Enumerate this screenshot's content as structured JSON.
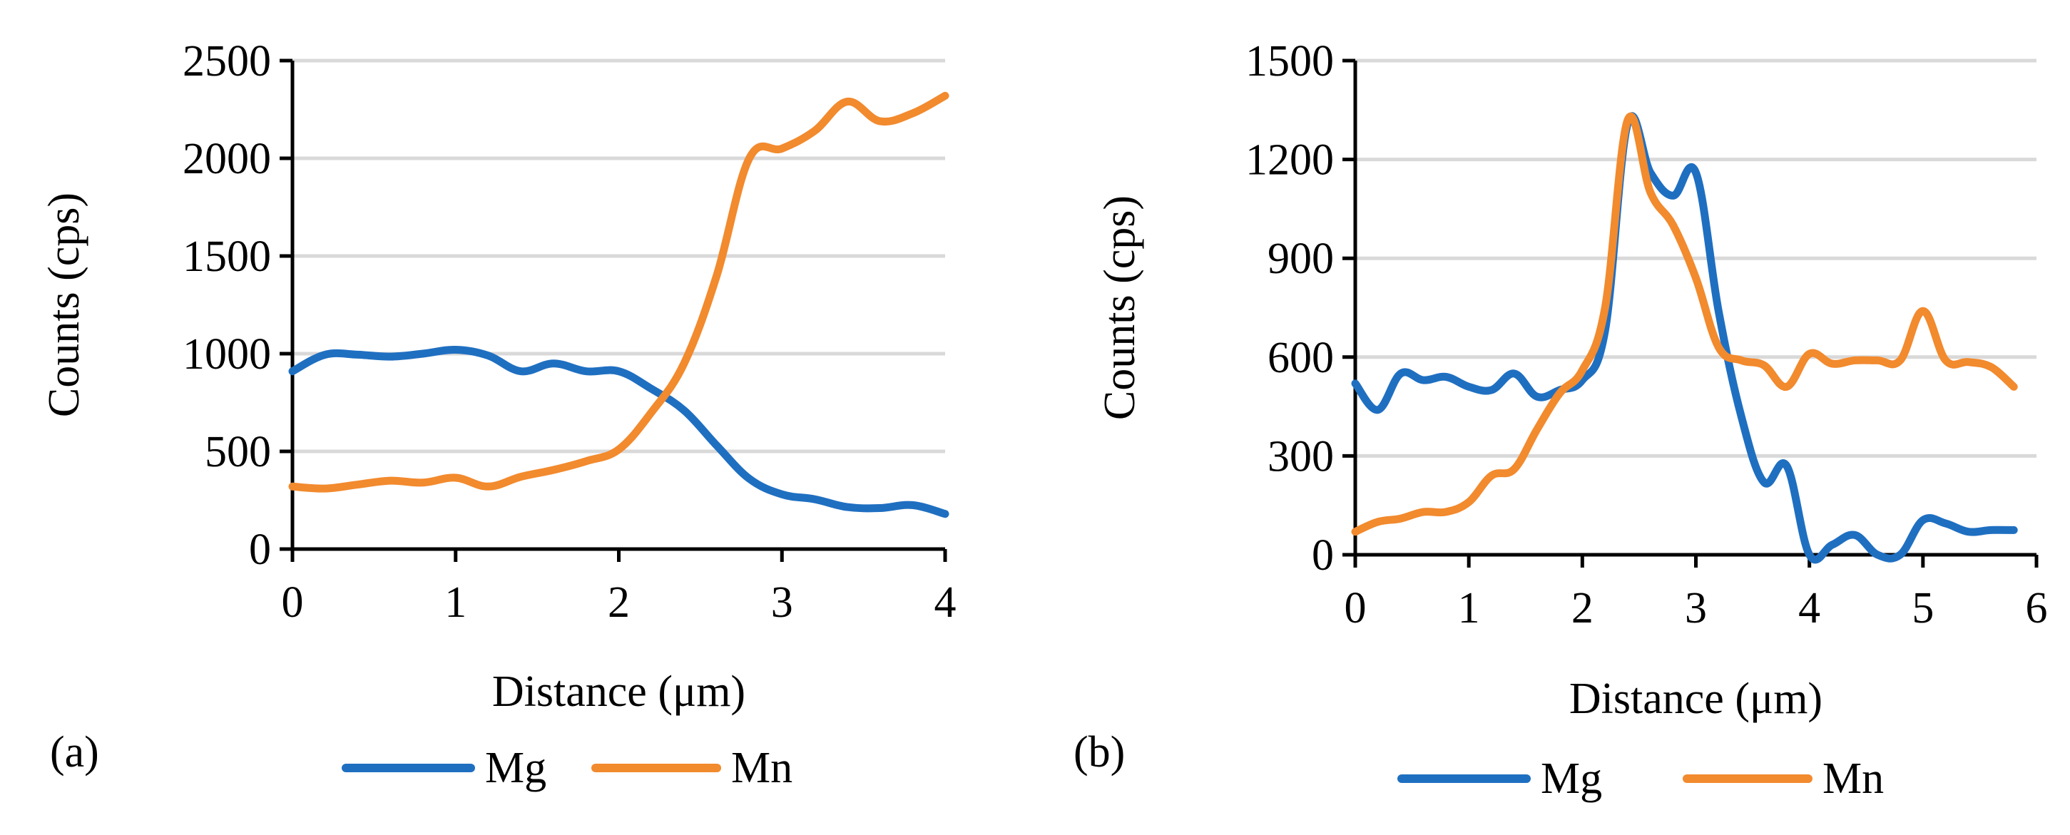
{
  "chart_data": [
    {
      "type": "line",
      "panel_label": "(a)",
      "xlabel": "Distance (μm)",
      "ylabel": "Counts (cps)",
      "xlim": [
        0,
        4
      ],
      "ylim": [
        0,
        2500
      ],
      "x_ticks": [
        "0",
        "1",
        "2",
        "3",
        "4"
      ],
      "y_ticks": [
        "0",
        "500",
        "1000",
        "1500",
        "2000",
        "2500"
      ],
      "legend_position": "bottom",
      "series": [
        {
          "name": "Mg",
          "color": "#1f6fc1",
          "x": [
            0,
            0.2,
            0.4,
            0.6,
            0.8,
            1.0,
            1.2,
            1.4,
            1.6,
            1.8,
            2.0,
            2.2,
            2.4,
            2.6,
            2.8,
            3.0,
            3.2,
            3.4,
            3.6,
            3.8,
            4.0
          ],
          "y": [
            910,
            995,
            995,
            985,
            1000,
            1020,
            990,
            910,
            950,
            910,
            910,
            820,
            710,
            530,
            360,
            280,
            255,
            215,
            210,
            225,
            180
          ]
        },
        {
          "name": "Mn",
          "color": "#f28a2e",
          "x": [
            0,
            0.2,
            0.4,
            0.6,
            0.8,
            1.0,
            1.2,
            1.4,
            1.6,
            1.8,
            2.0,
            2.2,
            2.4,
            2.6,
            2.8,
            3.0,
            3.2,
            3.4,
            3.6,
            3.8,
            4.0
          ],
          "y": [
            320,
            310,
            330,
            350,
            340,
            365,
            320,
            370,
            405,
            450,
            510,
            700,
            950,
            1400,
            2000,
            2050,
            2140,
            2290,
            2190,
            2230,
            2320
          ]
        }
      ]
    },
    {
      "type": "line",
      "panel_label": "(b)",
      "xlabel": "Distance (μm)",
      "ylabel": "Counts (cps)",
      "xlim": [
        0,
        6
      ],
      "ylim": [
        0,
        1500
      ],
      "x_ticks": [
        "0",
        "1",
        "2",
        "3",
        "4",
        "5",
        "6"
      ],
      "y_ticks": [
        "0",
        "300",
        "600",
        "900",
        "1200",
        "1500"
      ],
      "legend_position": "bottom",
      "series": [
        {
          "name": "Mg",
          "color": "#1f6fc1",
          "x": [
            0,
            0.2,
            0.4,
            0.6,
            0.8,
            1.0,
            1.2,
            1.4,
            1.6,
            1.8,
            2.0,
            2.2,
            2.4,
            2.6,
            2.8,
            3.0,
            3.2,
            3.4,
            3.6,
            3.8,
            4.0,
            4.2,
            4.4,
            4.6,
            4.8,
            5.0,
            5.2,
            5.4,
            5.6,
            5.8
          ],
          "y": [
            520,
            440,
            550,
            530,
            540,
            510,
            500,
            550,
            480,
            500,
            530,
            680,
            1310,
            1160,
            1090,
            1160,
            740,
            420,
            220,
            270,
            0,
            30,
            60,
            0,
            0,
            105,
            95,
            70,
            75,
            75
          ]
        },
        {
          "name": "Mn",
          "color": "#f28a2e",
          "x": [
            0,
            0.2,
            0.4,
            0.6,
            0.8,
            1.0,
            1.2,
            1.4,
            1.6,
            1.8,
            2.0,
            2.2,
            2.4,
            2.6,
            2.8,
            3.0,
            3.2,
            3.4,
            3.6,
            3.8,
            4.0,
            4.2,
            4.4,
            4.6,
            4.8,
            5.0,
            5.2,
            5.4,
            5.6,
            5.8
          ],
          "y": [
            70,
            100,
            110,
            130,
            130,
            160,
            240,
            260,
            380,
            490,
            560,
            750,
            1320,
            1100,
            1000,
            840,
            630,
            590,
            575,
            510,
            610,
            580,
            590,
            590,
            590,
            740,
            590,
            585,
            570,
            510
          ]
        }
      ]
    }
  ]
}
